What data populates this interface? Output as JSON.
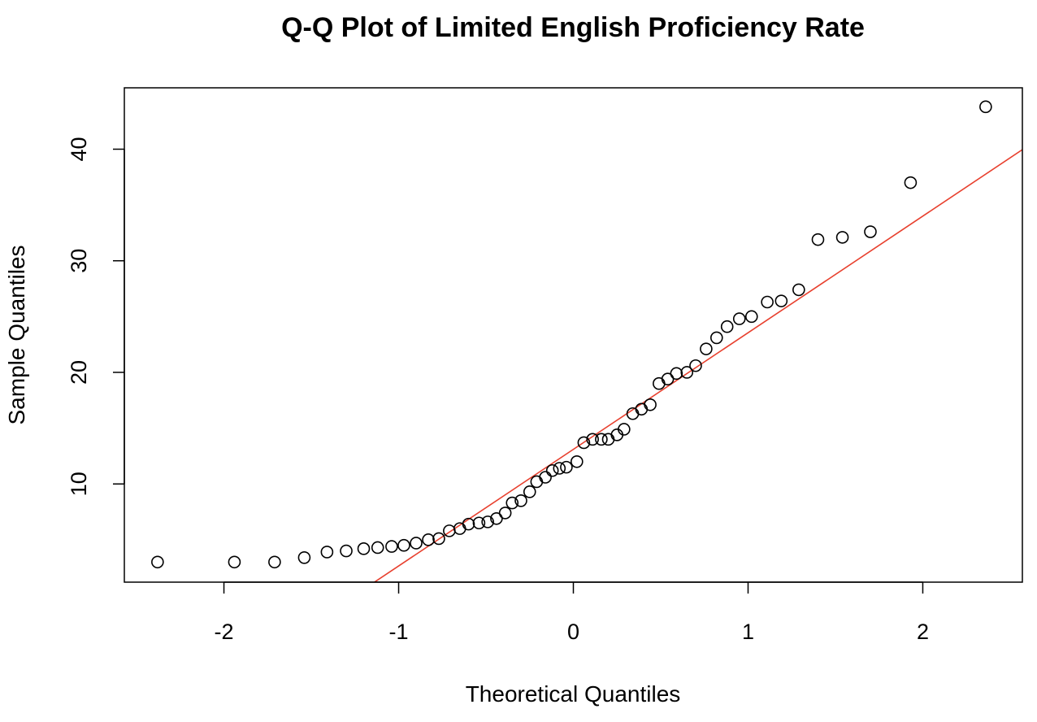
{
  "chart_data": {
    "type": "scatter",
    "title": "Q-Q Plot of Limited English Proficiency Rate",
    "xlabel": "Theoretical Quantiles",
    "ylabel": "Sample Quantiles",
    "xlim": [
      -2.57,
      2.57
    ],
    "ylim": [
      1.2,
      45.5
    ],
    "x_ticks": [
      -2,
      -1,
      0,
      1,
      2
    ],
    "x_tick_labels": [
      "-2",
      "-1",
      "0",
      "1",
      "2"
    ],
    "y_ticks": [
      10,
      20,
      30,
      40
    ],
    "y_tick_labels": [
      "10",
      "20",
      "30",
      "40"
    ],
    "grid": false,
    "legend": "none",
    "reference_line": {
      "intercept": 13.1,
      "slope": 10.45,
      "color": "#e8402e"
    },
    "point_style": {
      "shape": "open-circle",
      "color": "#000000"
    },
    "series": [
      {
        "x": [
          -2.38,
          -1.94,
          -1.71,
          -1.54,
          -1.41,
          -1.3,
          -1.2,
          -1.12,
          -1.04,
          -0.97,
          -0.9,
          -0.83,
          -0.77,
          -0.71,
          -0.65,
          -0.6,
          -0.54,
          -0.49,
          -0.44,
          -0.39,
          -0.35,
          -0.3,
          -0.25,
          -0.21,
          -0.16,
          -0.12,
          -0.08,
          -0.04,
          0.02,
          0.06,
          0.11,
          0.16,
          0.2,
          0.25,
          0.29,
          0.34,
          0.39,
          0.44,
          0.49,
          0.54,
          0.59,
          0.65,
          0.7,
          0.76,
          0.82,
          0.88,
          0.95,
          1.02,
          1.11,
          1.19,
          1.29,
          1.4,
          1.54,
          1.7,
          1.93,
          2.36
        ],
        "y": [
          3.0,
          3.0,
          3.0,
          3.4,
          3.9,
          4.0,
          4.2,
          4.3,
          4.4,
          4.5,
          4.7,
          5.0,
          5.1,
          5.8,
          6.0,
          6.4,
          6.5,
          6.6,
          6.9,
          7.4,
          8.3,
          8.5,
          9.3,
          10.2,
          10.6,
          11.2,
          11.4,
          11.5,
          12.0,
          13.7,
          14.0,
          14.0,
          14.0,
          14.4,
          14.9,
          16.3,
          16.7,
          17.1,
          19.0,
          19.4,
          19.9,
          20.0,
          20.6,
          22.1,
          23.1,
          24.1,
          24.8,
          25.0,
          26.3,
          26.4,
          27.4,
          31.9,
          32.1,
          32.6,
          37.0,
          43.8
        ]
      }
    ]
  }
}
